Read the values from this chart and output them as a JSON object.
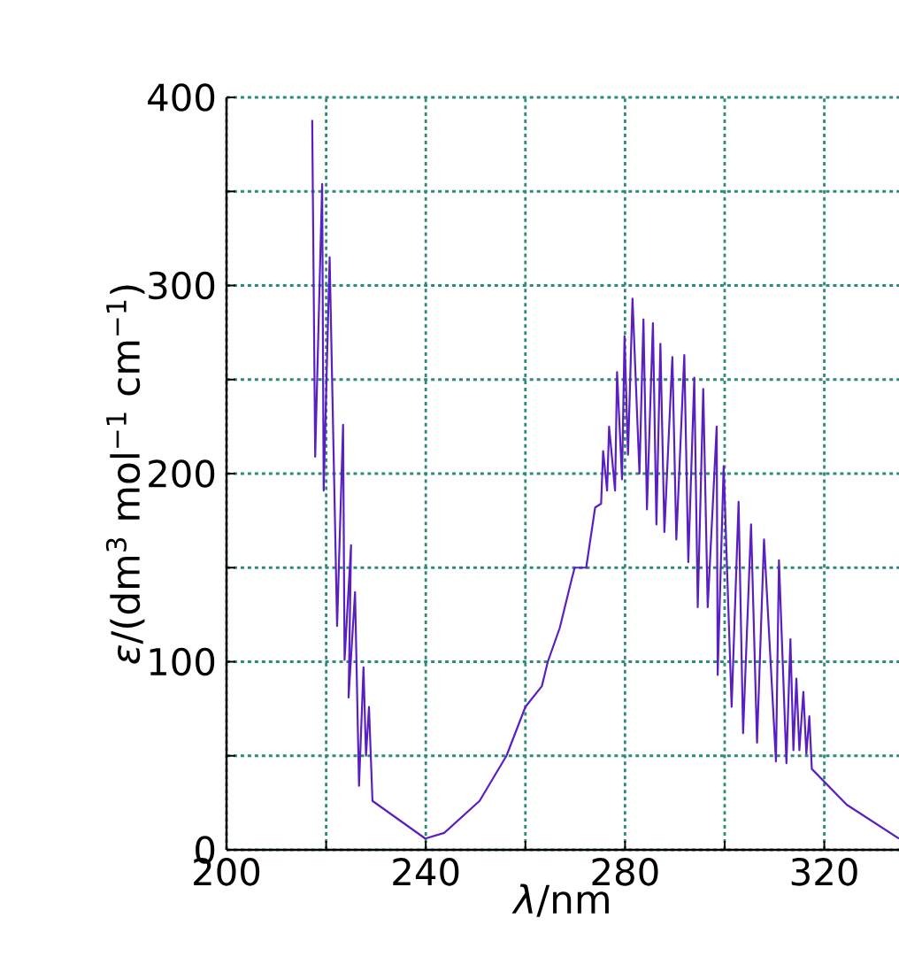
{
  "chart_data": {
    "type": "line",
    "xlabel": "*λ*/nm",
    "ylabel": "*ε*/(dm$^{3}$ mol$^{−1}$ cm$^{−1}$)",
    "xlim": [
      200,
      335
    ],
    "ylim": [
      0,
      400
    ],
    "xticks": [
      200,
      {
        "value": 220,
        "label": null
      },
      240,
      {
        "value": 260,
        "label": null
      },
      280,
      {
        "value": 300,
        "label": null
      },
      320
    ],
    "yticks": [
      0,
      {
        "value": 50,
        "label": null
      },
      100,
      {
        "value": 150,
        "label": null
      },
      200,
      {
        "value": 250,
        "label": null
      },
      300,
      {
        "value": 350,
        "label": null
      },
      400
    ],
    "grid": true,
    "line_style": "solid",
    "series": [
      {
        "color": "#5a1fc0",
        "x": [
          217.2,
          217.8,
          219.2,
          219.5,
          220.7,
          222.2,
          223.4,
          223.7,
          225.0,
          224.5,
          225.8,
          226.6,
          227.5,
          228.0,
          228.6,
          229.3,
          239.9,
          243.7,
          250.8,
          256.2,
          260,
          263.3,
          264.5,
          266.9,
          269.3,
          269.9,
          272.2,
          274.0,
          275.2,
          275.6,
          276.4,
          276.8,
          278.0,
          278.4,
          279.4,
          279.9,
          280.6,
          281.5,
          282.9,
          283.7,
          284.4,
          285.6,
          286.3,
          287.1,
          287.9,
          289.5,
          290.3,
          291.9,
          292.7,
          293.9,
          294.6,
          295.7,
          296.6,
          298.4,
          298.6,
          299.8,
          301.4,
          302.8,
          303.7,
          305.3,
          306.5,
          307.9,
          310.3,
          310.9,
          312.4,
          313.2,
          313.8,
          314.4,
          315.0,
          315.8,
          316.4,
          317.0,
          317.5,
          324.5,
          335
        ],
        "values": [
          388,
          209,
          354,
          191,
          315,
          119,
          226,
          101,
          162,
          81,
          137,
          34,
          97,
          50,
          76,
          26,
          6,
          9,
          26,
          50,
          76,
          87,
          100,
          118,
          144,
          150,
          150,
          182,
          184,
          212,
          191,
          225,
          191,
          254,
          197,
          273,
          210,
          293,
          200,
          282,
          181,
          280,
          173,
          269,
          169,
          262,
          165,
          263,
          153,
          251,
          129,
          245,
          129,
          225,
          93,
          204,
          76,
          185,
          62,
          173,
          57,
          165,
          47,
          154,
          46,
          112,
          53,
          91,
          53,
          84,
          51,
          71,
          43,
          24,
          6
        ]
      }
    ]
  }
}
